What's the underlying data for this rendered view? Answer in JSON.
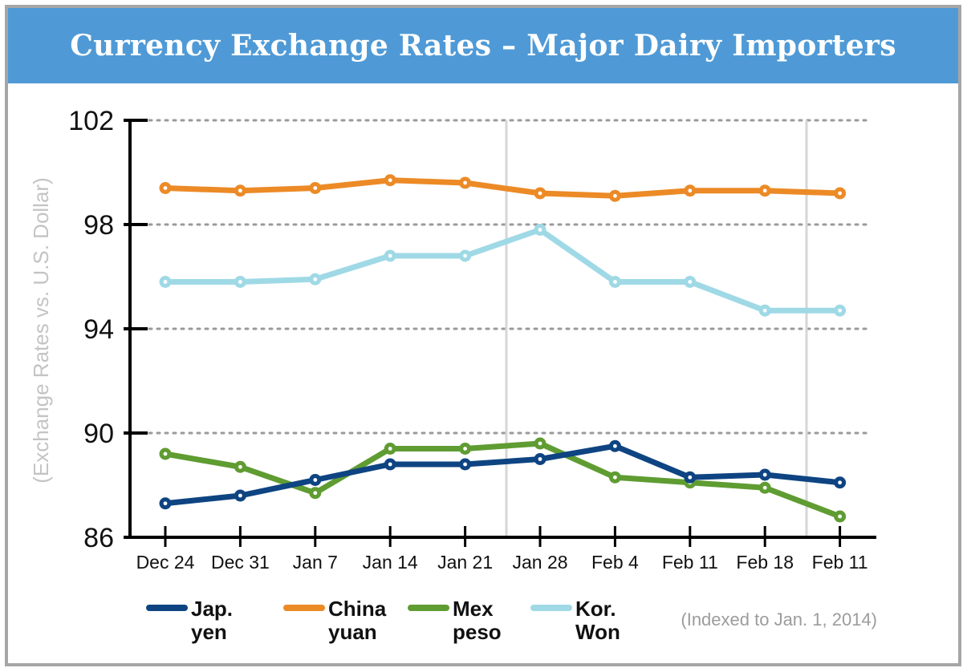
{
  "chart_data": {
    "type": "line",
    "title": "Currency Exchange Rates – Major Dairy Importers",
    "ylabel": "(Exchange Rates vs. U.S. Dollar)",
    "xlabel": "",
    "ylim": [
      86,
      102
    ],
    "yticks": [
      "102",
      "98",
      "94",
      "90",
      "86"
    ],
    "ytick_values": [
      102,
      98,
      94,
      90,
      86
    ],
    "categories": [
      "Dec 24",
      "Dec 31",
      "Jan 7",
      "Jan 14",
      "Jan 21",
      "Jan 28",
      "Feb 4",
      "Feb 11",
      "Feb 18",
      "Feb 11"
    ],
    "series": [
      {
        "name": "Jap. yen",
        "legend_lines": [
          "Jap.",
          "yen"
        ],
        "color": "#0e4482",
        "values": [
          87.3,
          87.6,
          88.2,
          88.8,
          88.8,
          89.0,
          89.5,
          88.3,
          88.4,
          88.1
        ]
      },
      {
        "name": "China yuan",
        "legend_lines": [
          "China",
          "yuan"
        ],
        "color": "#ec8a26",
        "values": [
          99.4,
          99.3,
          99.4,
          99.7,
          99.6,
          99.2,
          99.1,
          99.3,
          99.3,
          99.2
        ]
      },
      {
        "name": "Mex peso",
        "legend_lines": [
          "Mex",
          "peso"
        ],
        "color": "#5f9c32",
        "values": [
          89.2,
          88.7,
          87.7,
          89.4,
          89.4,
          89.6,
          88.3,
          88.1,
          87.9,
          86.8
        ]
      },
      {
        "name": "Kor. Won",
        "legend_lines": [
          "Kor.",
          "Won"
        ],
        "color": "#9fd9e6",
        "values": [
          95.8,
          95.8,
          95.9,
          96.8,
          96.8,
          97.8,
          95.8,
          95.8,
          94.7,
          94.7
        ]
      }
    ],
    "note": "(Indexed to Jan. 1, 2014)",
    "grid": "dotted horizontal",
    "legend_position": "bottom"
  }
}
